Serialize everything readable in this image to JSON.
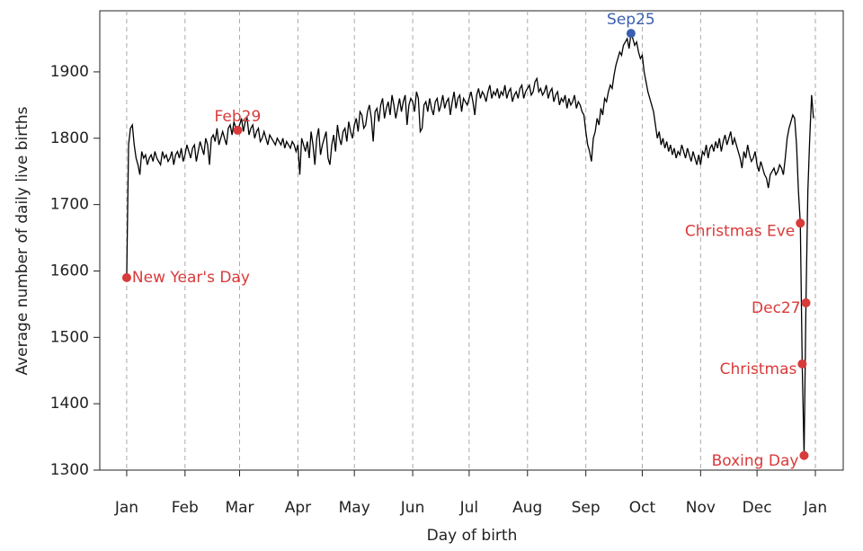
{
  "chart_data": {
    "type": "line",
    "x_label": "Day of birth",
    "y_label": "Average number of daily live births",
    "x": [
      1,
      2,
      3,
      4,
      5,
      6,
      7,
      8,
      9,
      10,
      11,
      12,
      13,
      14,
      15,
      16,
      17,
      18,
      19,
      20,
      21,
      22,
      23,
      24,
      25,
      26,
      27,
      28,
      29,
      30,
      31,
      32,
      33,
      34,
      35,
      36,
      37,
      38,
      39,
      40,
      41,
      42,
      43,
      44,
      45,
      46,
      47,
      48,
      49,
      50,
      51,
      52,
      53,
      54,
      55,
      56,
      57,
      58,
      59,
      60,
      61,
      62,
      63,
      64,
      65,
      66,
      67,
      68,
      69,
      70,
      71,
      72,
      73,
      74,
      75,
      76,
      77,
      78,
      79,
      80,
      81,
      82,
      83,
      84,
      85,
      86,
      87,
      88,
      89,
      90,
      91,
      92,
      93,
      94,
      95,
      96,
      97,
      98,
      99,
      100,
      101,
      102,
      103,
      104,
      105,
      106,
      107,
      108,
      109,
      110,
      111,
      112,
      113,
      114,
      115,
      116,
      117,
      118,
      119,
      120,
      121,
      122,
      123,
      124,
      125,
      126,
      127,
      128,
      129,
      130,
      131,
      132,
      133,
      134,
      135,
      136,
      137,
      138,
      139,
      140,
      141,
      142,
      143,
      144,
      145,
      146,
      147,
      148,
      149,
      150,
      151,
      152,
      153,
      154,
      155,
      156,
      157,
      158,
      159,
      160,
      161,
      162,
      163,
      164,
      165,
      166,
      167,
      168,
      169,
      170,
      171,
      172,
      173,
      174,
      175,
      176,
      177,
      178,
      179,
      180,
      181,
      182,
      183,
      184,
      185,
      186,
      187,
      188,
      189,
      190,
      191,
      192,
      193,
      194,
      195,
      196,
      197,
      198,
      199,
      200,
      201,
      202,
      203,
      204,
      205,
      206,
      207,
      208,
      209,
      210,
      211,
      212,
      213,
      214,
      215,
      216,
      217,
      218,
      219,
      220,
      221,
      222,
      223,
      224,
      225,
      226,
      227,
      228,
      229,
      230,
      231,
      232,
      233,
      234,
      235,
      236,
      237,
      238,
      239,
      240,
      241,
      242,
      243,
      244,
      245,
      246,
      247,
      248,
      249,
      250,
      251,
      252,
      253,
      254,
      255,
      256,
      257,
      258,
      259,
      260,
      261,
      262,
      263,
      264,
      265,
      266,
      267,
      268,
      269,
      270,
      271,
      272,
      273,
      274,
      275,
      276,
      277,
      278,
      279,
      280,
      281,
      282,
      283,
      284,
      285,
      286,
      287,
      288,
      289,
      290,
      291,
      292,
      293,
      294,
      295,
      296,
      297,
      298,
      299,
      300,
      301,
      302,
      303,
      304,
      305,
      306,
      307,
      308,
      309,
      310,
      311,
      312,
      313,
      314,
      315,
      316,
      317,
      318,
      319,
      320,
      321,
      322,
      323,
      324,
      325,
      326,
      327,
      328,
      329,
      330,
      331,
      332,
      333,
      334,
      335,
      336,
      337,
      338,
      339,
      340,
      341,
      342,
      343,
      344,
      345,
      346,
      347,
      348,
      349,
      350,
      351,
      352,
      353,
      354,
      355,
      356,
      357,
      358,
      359,
      360,
      361,
      362,
      363,
      364,
      365,
      366
    ],
    "series": [
      {
        "color": "#000000",
        "values": [
          1590,
          1790,
          1815,
          1820,
          1790,
          1770,
          1760,
          1745,
          1780,
          1770,
          1775,
          1760,
          1770,
          1775,
          1765,
          1780,
          1770,
          1765,
          1760,
          1780,
          1770,
          1775,
          1765,
          1770,
          1780,
          1760,
          1775,
          1780,
          1770,
          1785,
          1765,
          1775,
          1790,
          1780,
          1770,
          1785,
          1790,
          1765,
          1780,
          1795,
          1785,
          1775,
          1800,
          1790,
          1760,
          1800,
          1805,
          1795,
          1815,
          1790,
          1800,
          1810,
          1800,
          1790,
          1815,
          1820,
          1805,
          1825,
          1815,
          1812,
          1820,
          1830,
          1810,
          1825,
          1830,
          1805,
          1815,
          1820,
          1800,
          1810,
          1815,
          1795,
          1800,
          1810,
          1800,
          1790,
          1805,
          1800,
          1795,
          1790,
          1800,
          1795,
          1790,
          1800,
          1785,
          1795,
          1790,
          1785,
          1795,
          1790,
          1780,
          1790,
          1745,
          1800,
          1790,
          1780,
          1795,
          1770,
          1810,
          1790,
          1760,
          1800,
          1815,
          1775,
          1790,
          1800,
          1810,
          1770,
          1760,
          1790,
          1805,
          1780,
          1820,
          1800,
          1790,
          1810,
          1815,
          1795,
          1825,
          1810,
          1800,
          1820,
          1830,
          1810,
          1840,
          1835,
          1815,
          1820,
          1840,
          1850,
          1830,
          1795,
          1840,
          1845,
          1825,
          1850,
          1860,
          1830,
          1845,
          1855,
          1835,
          1865,
          1850,
          1830,
          1845,
          1860,
          1840,
          1855,
          1865,
          1820,
          1850,
          1860,
          1855,
          1840,
          1870,
          1860,
          1810,
          1815,
          1850,
          1855,
          1840,
          1860,
          1845,
          1835,
          1855,
          1860,
          1840,
          1850,
          1865,
          1845,
          1855,
          1860,
          1835,
          1855,
          1870,
          1845,
          1860,
          1865,
          1840,
          1860,
          1855,
          1850,
          1860,
          1870,
          1855,
          1835,
          1865,
          1875,
          1860,
          1870,
          1865,
          1855,
          1870,
          1880,
          1860,
          1870,
          1865,
          1875,
          1860,
          1870,
          1865,
          1880,
          1860,
          1870,
          1875,
          1855,
          1865,
          1870,
          1860,
          1875,
          1880,
          1860,
          1870,
          1875,
          1880,
          1865,
          1870,
          1885,
          1890,
          1870,
          1875,
          1865,
          1870,
          1880,
          1860,
          1870,
          1875,
          1855,
          1865,
          1870,
          1850,
          1860,
          1855,
          1865,
          1845,
          1860,
          1850,
          1855,
          1865,
          1845,
          1855,
          1850,
          1840,
          1835,
          1810,
          1790,
          1780,
          1765,
          1800,
          1810,
          1830,
          1820,
          1845,
          1835,
          1860,
          1855,
          1870,
          1880,
          1875,
          1895,
          1910,
          1920,
          1930,
          1925,
          1940,
          1945,
          1950,
          1935,
          1958,
          1950,
          1940,
          1945,
          1930,
          1920,
          1925,
          1900,
          1885,
          1870,
          1860,
          1850,
          1840,
          1820,
          1800,
          1810,
          1790,
          1800,
          1785,
          1795,
          1780,
          1790,
          1775,
          1785,
          1770,
          1780,
          1775,
          1790,
          1780,
          1770,
          1785,
          1775,
          1765,
          1780,
          1770,
          1760,
          1775,
          1760,
          1780,
          1775,
          1790,
          1770,
          1785,
          1790,
          1780,
          1795,
          1785,
          1800,
          1780,
          1795,
          1805,
          1790,
          1800,
          1810,
          1790,
          1800,
          1790,
          1780,
          1770,
          1755,
          1780,
          1770,
          1790,
          1775,
          1765,
          1770,
          1780,
          1760,
          1750,
          1765,
          1755,
          1745,
          1740,
          1725,
          1745,
          1750,
          1755,
          1745,
          1750,
          1760,
          1755,
          1745,
          1770,
          1800,
          1815,
          1825,
          1835,
          1830,
          1790,
          1720,
          1672,
          1460,
          1322,
          1552,
          1720,
          1800,
          1865,
          1830
        ]
      }
    ],
    "annotations": [
      {
        "label": "New Year's Day",
        "x": 1,
        "y": 1590,
        "color": "#d93a3a",
        "position": "right"
      },
      {
        "label": "Feb29",
        "x": 60,
        "y": 1812,
        "color": "#d93a3a",
        "position": "above"
      },
      {
        "label": "Sep25",
        "x": 269,
        "y": 1958,
        "color": "#3a5fb0",
        "position": "above"
      },
      {
        "label": "Christmas Eve",
        "x": 359,
        "y": 1672,
        "color": "#d93a3a",
        "position": "left"
      },
      {
        "label": "Christmas",
        "x": 360,
        "y": 1460,
        "color": "#d93a3a",
        "position": "left"
      },
      {
        "label": "Boxing Day",
        "x": 361,
        "y": 1322,
        "color": "#d93a3a",
        "position": "left"
      },
      {
        "label": "Dec27",
        "x": 362,
        "y": 1552,
        "color": "#d93a3a",
        "position": "left"
      }
    ],
    "xlim": [
      -13.3,
      381.8
    ],
    "xticks": [
      {
        "value": 1,
        "label": "Jan"
      },
      {
        "value": 32,
        "label": "Feb"
      },
      {
        "value": 61,
        "label": "Mar"
      },
      {
        "value": 92,
        "label": "Apr"
      },
      {
        "value": 122,
        "label": "May"
      },
      {
        "value": 153,
        "label": "Jun"
      },
      {
        "value": 183,
        "label": "Jul"
      },
      {
        "value": 214,
        "label": "Aug"
      },
      {
        "value": 245,
        "label": "Sep"
      },
      {
        "value": 275,
        "label": "Oct"
      },
      {
        "value": 306,
        "label": "Nov"
      },
      {
        "value": 336,
        "label": "Dec"
      },
      {
        "value": 367,
        "label": "Jan"
      }
    ],
    "ylim": [
      1300,
      1992
    ],
    "yticks": [
      1300,
      1400,
      1500,
      1600,
      1700,
      1800,
      1900
    ],
    "grid": "x"
  }
}
